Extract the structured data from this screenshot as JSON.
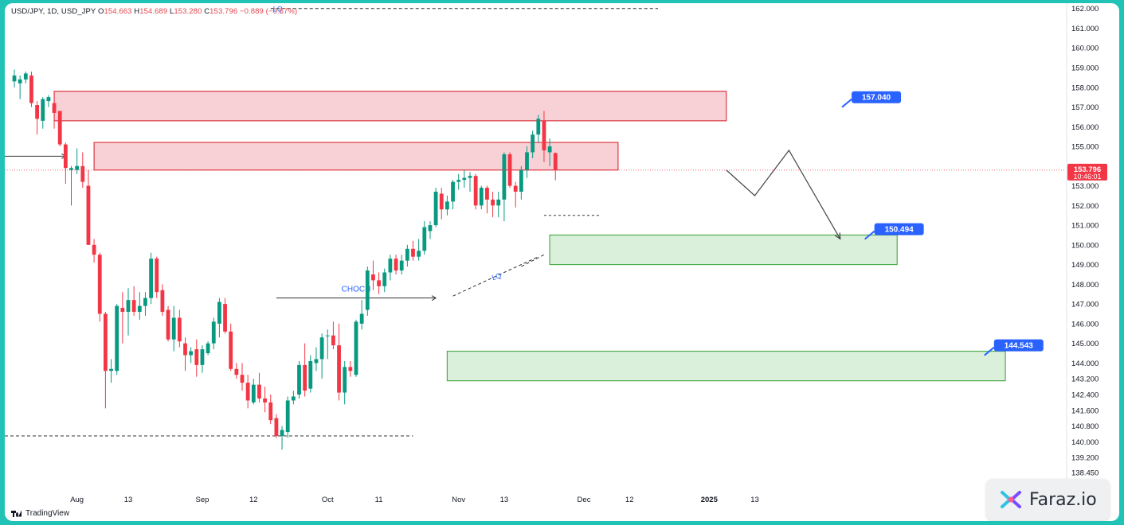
{
  "header": {
    "symbol": "USD/JPY, 1D, USD_JPY",
    "open_label": "O",
    "open": "154.663",
    "high_label": "H",
    "high": "154.689",
    "low_label": "L",
    "low": "153.280",
    "close_label": "C",
    "close": "153.796",
    "change": "−0.889 (−0.57%)"
  },
  "colors": {
    "up": "#089981",
    "down": "#f23645",
    "supply_fill": "#f7cdd2",
    "supply_border": "#d9232f",
    "demand_fill": "#d6efd6",
    "demand_border": "#3aa53a",
    "label_bg": "#2962ff",
    "teal_frame": "#22c3b7"
  },
  "branding": {
    "tradingview": "TradingView",
    "faraz": "Faraz.io",
    "faraz_icon": "faraz-logo-icon"
  },
  "chart_data": {
    "type": "candlestick",
    "title": "",
    "xlabel": "",
    "ylabel": "",
    "ylim": [
      138.2,
      162.15
    ],
    "y_ticks": [
      "162.000",
      "161.000",
      "160.000",
      "159.000",
      "158.000",
      "157.000",
      "156.000",
      "155.000",
      "154.000",
      "153.000",
      "152.000",
      "151.000",
      "150.000",
      "149.000",
      "148.000",
      "147.000",
      "146.000",
      "145.000",
      "144.000",
      "143.200",
      "142.400",
      "141.600",
      "140.800",
      "140.000",
      "139.200",
      "138.450"
    ],
    "x_ticks": [
      {
        "label": "Aug",
        "i": 11
      },
      {
        "label": "13",
        "i": 20
      },
      {
        "label": "Sep",
        "i": 33
      },
      {
        "label": "12",
        "i": 42
      },
      {
        "label": "Oct",
        "i": 55
      },
      {
        "label": "11",
        "i": 64
      },
      {
        "label": "Nov",
        "i": 78
      },
      {
        "label": "13",
        "i": 86
      },
      {
        "label": "Dec",
        "i": 100
      },
      {
        "label": "12",
        "i": 108
      },
      {
        "label": "2025",
        "i": 122
      },
      {
        "label": "13",
        "i": 130
      }
    ],
    "candles": [
      {
        "o": 158.3,
        "h": 158.9,
        "l": 158.0,
        "c": 158.6
      },
      {
        "o": 158.2,
        "h": 158.6,
        "l": 157.4,
        "c": 158.4
      },
      {
        "o": 158.4,
        "h": 158.8,
        "l": 158.2,
        "c": 158.7
      },
      {
        "o": 158.6,
        "h": 158.8,
        "l": 157.0,
        "c": 157.2
      },
      {
        "o": 157.1,
        "h": 157.3,
        "l": 155.6,
        "c": 156.4
      },
      {
        "o": 156.3,
        "h": 157.5,
        "l": 155.9,
        "c": 157.4
      },
      {
        "o": 157.3,
        "h": 157.6,
        "l": 157.0,
        "c": 157.5
      },
      {
        "o": 157.2,
        "h": 157.5,
        "l": 155.9,
        "c": 156.7
      },
      {
        "o": 156.8,
        "h": 156.8,
        "l": 155.0,
        "c": 155.1
      },
      {
        "o": 155.1,
        "h": 155.2,
        "l": 153.1,
        "c": 153.9
      },
      {
        "o": 153.8,
        "h": 154.0,
        "l": 152.0,
        "c": 153.9
      },
      {
        "o": 153.8,
        "h": 154.9,
        "l": 153.6,
        "c": 154.0
      },
      {
        "o": 154.0,
        "h": 154.7,
        "l": 152.9,
        "c": 153.2
      },
      {
        "o": 153.0,
        "h": 153.8,
        "l": 150.0,
        "c": 150.0
      },
      {
        "o": 150.0,
        "h": 150.3,
        "l": 149.1,
        "c": 149.5
      },
      {
        "o": 149.5,
        "h": 149.6,
        "l": 146.1,
        "c": 146.5
      },
      {
        "o": 146.5,
        "h": 146.6,
        "l": 141.7,
        "c": 143.6
      },
      {
        "o": 143.6,
        "h": 144.2,
        "l": 143.0,
        "c": 143.7
      },
      {
        "o": 143.6,
        "h": 147.0,
        "l": 143.4,
        "c": 146.9
      },
      {
        "o": 146.8,
        "h": 147.6,
        "l": 145.0,
        "c": 146.6
      },
      {
        "o": 146.6,
        "h": 147.8,
        "l": 145.4,
        "c": 147.2
      },
      {
        "o": 147.2,
        "h": 147.9,
        "l": 146.4,
        "c": 146.6
      },
      {
        "o": 146.6,
        "h": 147.6,
        "l": 146.2,
        "c": 146.9
      },
      {
        "o": 146.9,
        "h": 147.6,
        "l": 146.4,
        "c": 147.3
      },
      {
        "o": 147.3,
        "h": 149.6,
        "l": 147.0,
        "c": 149.3
      },
      {
        "o": 149.3,
        "h": 149.4,
        "l": 147.3,
        "c": 147.6
      },
      {
        "o": 147.7,
        "h": 148.0,
        "l": 146.4,
        "c": 146.6
      },
      {
        "o": 146.7,
        "h": 146.9,
        "l": 145.1,
        "c": 145.2
      },
      {
        "o": 145.2,
        "h": 146.9,
        "l": 144.6,
        "c": 146.3
      },
      {
        "o": 146.3,
        "h": 146.7,
        "l": 144.8,
        "c": 145.1
      },
      {
        "o": 145.0,
        "h": 145.3,
        "l": 143.6,
        "c": 144.4
      },
      {
        "o": 144.4,
        "h": 144.8,
        "l": 144.0,
        "c": 144.6
      },
      {
        "o": 144.7,
        "h": 145.2,
        "l": 143.3,
        "c": 143.9
      },
      {
        "o": 143.9,
        "h": 144.9,
        "l": 143.5,
        "c": 144.7
      },
      {
        "o": 144.5,
        "h": 145.1,
        "l": 144.4,
        "c": 145.0
      },
      {
        "o": 145.0,
        "h": 146.3,
        "l": 144.7,
        "c": 146.1
      },
      {
        "o": 146.0,
        "h": 147.3,
        "l": 145.3,
        "c": 147.1
      },
      {
        "o": 147.0,
        "h": 147.3,
        "l": 145.5,
        "c": 145.6
      },
      {
        "o": 145.6,
        "h": 146.0,
        "l": 143.6,
        "c": 143.7
      },
      {
        "o": 143.7,
        "h": 144.0,
        "l": 143.2,
        "c": 143.4
      },
      {
        "o": 143.4,
        "h": 144.0,
        "l": 142.6,
        "c": 143.0
      },
      {
        "o": 143.0,
        "h": 143.4,
        "l": 141.7,
        "c": 142.1
      },
      {
        "o": 142.0,
        "h": 143.2,
        "l": 141.9,
        "c": 142.9
      },
      {
        "o": 142.9,
        "h": 143.5,
        "l": 142.0,
        "c": 142.2
      },
      {
        "o": 142.2,
        "h": 142.8,
        "l": 141.5,
        "c": 142.0
      },
      {
        "o": 142.0,
        "h": 142.4,
        "l": 140.9,
        "c": 141.1
      },
      {
        "o": 141.2,
        "h": 141.4,
        "l": 140.2,
        "c": 140.3
      },
      {
        "o": 140.3,
        "h": 140.8,
        "l": 139.6,
        "c": 140.6
      },
      {
        "o": 140.5,
        "h": 142.3,
        "l": 140.2,
        "c": 142.1
      },
      {
        "o": 142.1,
        "h": 142.6,
        "l": 141.9,
        "c": 142.3
      },
      {
        "o": 142.4,
        "h": 144.1,
        "l": 142.2,
        "c": 143.9
      },
      {
        "o": 143.9,
        "h": 145.0,
        "l": 142.3,
        "c": 142.6
      },
      {
        "o": 142.7,
        "h": 144.4,
        "l": 142.5,
        "c": 144.1
      },
      {
        "o": 144.0,
        "h": 144.8,
        "l": 143.6,
        "c": 144.2
      },
      {
        "o": 144.2,
        "h": 145.5,
        "l": 143.2,
        "c": 145.3
      },
      {
        "o": 145.4,
        "h": 145.7,
        "l": 144.2,
        "c": 145.4
      },
      {
        "o": 145.4,
        "h": 146.1,
        "l": 144.7,
        "c": 144.9
      },
      {
        "o": 144.9,
        "h": 146.0,
        "l": 142.1,
        "c": 142.5
      },
      {
        "o": 142.5,
        "h": 144.1,
        "l": 141.9,
        "c": 143.8
      },
      {
        "o": 143.8,
        "h": 144.1,
        "l": 143.3,
        "c": 143.6
      },
      {
        "o": 143.4,
        "h": 146.2,
        "l": 143.3,
        "c": 146.1
      },
      {
        "o": 146.0,
        "h": 147.2,
        "l": 145.7,
        "c": 146.5
      },
      {
        "o": 146.7,
        "h": 148.9,
        "l": 146.4,
        "c": 148.7
      },
      {
        "o": 148.5,
        "h": 149.2,
        "l": 147.7,
        "c": 148.2
      },
      {
        "o": 148.2,
        "h": 148.6,
        "l": 147.5,
        "c": 147.9
      },
      {
        "o": 147.9,
        "h": 148.8,
        "l": 147.6,
        "c": 148.6
      },
      {
        "o": 148.6,
        "h": 149.5,
        "l": 148.2,
        "c": 149.3
      },
      {
        "o": 149.3,
        "h": 149.5,
        "l": 148.5,
        "c": 148.7
      },
      {
        "o": 148.7,
        "h": 149.5,
        "l": 148.5,
        "c": 149.2
      },
      {
        "o": 149.2,
        "h": 150.0,
        "l": 148.9,
        "c": 149.8
      },
      {
        "o": 149.8,
        "h": 150.2,
        "l": 149.2,
        "c": 149.4
      },
      {
        "o": 149.4,
        "h": 150.3,
        "l": 149.2,
        "c": 149.7
      },
      {
        "o": 149.7,
        "h": 151.2,
        "l": 149.5,
        "c": 150.9
      },
      {
        "o": 150.7,
        "h": 151.2,
        "l": 150.3,
        "c": 151.0
      },
      {
        "o": 151.0,
        "h": 152.9,
        "l": 150.9,
        "c": 152.7
      },
      {
        "o": 152.6,
        "h": 152.9,
        "l": 151.3,
        "c": 151.8
      },
      {
        "o": 151.8,
        "h": 152.5,
        "l": 151.5,
        "c": 152.2
      },
      {
        "o": 152.2,
        "h": 153.3,
        "l": 151.8,
        "c": 153.2
      },
      {
        "o": 153.2,
        "h": 153.6,
        "l": 152.8,
        "c": 153.3
      },
      {
        "o": 153.3,
        "h": 153.8,
        "l": 152.9,
        "c": 153.4
      },
      {
        "o": 153.4,
        "h": 153.7,
        "l": 152.7,
        "c": 153.5
      },
      {
        "o": 153.5,
        "h": 153.6,
        "l": 151.8,
        "c": 152.0
      },
      {
        "o": 152.0,
        "h": 153.0,
        "l": 151.8,
        "c": 152.9
      },
      {
        "o": 152.9,
        "h": 153.0,
        "l": 151.6,
        "c": 152.3
      },
      {
        "o": 152.3,
        "h": 152.7,
        "l": 151.4,
        "c": 152.0
      },
      {
        "o": 152.0,
        "h": 152.7,
        "l": 151.4,
        "c": 152.3
      },
      {
        "o": 152.3,
        "h": 154.7,
        "l": 151.2,
        "c": 154.6
      },
      {
        "o": 154.6,
        "h": 154.7,
        "l": 152.9,
        "c": 153.0
      },
      {
        "o": 153.0,
        "h": 153.2,
        "l": 151.9,
        "c": 152.7
      },
      {
        "o": 152.7,
        "h": 154.0,
        "l": 152.3,
        "c": 153.8
      },
      {
        "o": 153.8,
        "h": 155.0,
        "l": 153.4,
        "c": 154.7
      },
      {
        "o": 154.7,
        "h": 155.8,
        "l": 154.4,
        "c": 155.6
      },
      {
        "o": 155.6,
        "h": 156.6,
        "l": 155.2,
        "c": 156.4
      },
      {
        "o": 156.3,
        "h": 156.8,
        "l": 154.2,
        "c": 154.8
      },
      {
        "o": 154.7,
        "h": 155.4,
        "l": 154.0,
        "c": 155.0
      },
      {
        "o": 154.663,
        "h": 154.689,
        "l": 153.28,
        "c": 153.796
      }
    ],
    "zones": [
      {
        "name": "supply-zone-upper",
        "kind": "supply",
        "i1": 7,
        "i2": 125,
        "y1": 156.3,
        "y2": 157.8
      },
      {
        "name": "supply-zone-lower",
        "kind": "supply",
        "i1": 14,
        "i2": 106,
        "y1": 153.8,
        "y2": 155.2
      },
      {
        "name": "demand-zone-upper",
        "kind": "demand",
        "i1": 94,
        "i2": 155,
        "y1": 149.0,
        "y2": 150.5
      },
      {
        "name": "demand-zone-lower",
        "kind": "demand",
        "i1": 76,
        "i2": 174,
        "y1": 143.1,
        "y2": 144.6
      }
    ],
    "level_labels": [
      {
        "name": "label-157",
        "text": "157.040",
        "i": 147,
        "y": 157.8
      },
      {
        "name": "label-150",
        "text": "150.494",
        "i": 151,
        "y": 151.1
      },
      {
        "name": "label-144",
        "text": "144.543",
        "i": 172,
        "y": 145.2
      }
    ],
    "annotations": {
      "choch": "CHOCH",
      "lq": "LQ",
      "current_price": "153.796",
      "countdown": "10:46:01"
    },
    "projected_path": [
      {
        "i": 125,
        "y": 153.8
      },
      {
        "i": 130,
        "y": 152.5
      },
      {
        "i": 136,
        "y": 154.8
      },
      {
        "i": 145,
        "y": 150.3
      }
    ]
  }
}
